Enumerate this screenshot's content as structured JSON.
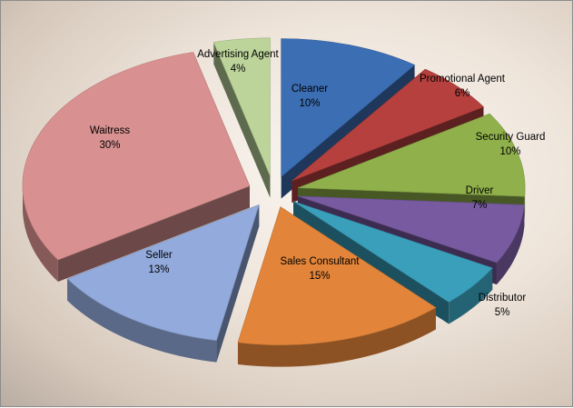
{
  "chart_data": {
    "type": "pie",
    "title": "",
    "exploded": true,
    "style": "3d",
    "categories": [
      "Cleaner",
      "Promotional Agent",
      "Security Guard",
      "Driver",
      "Distributor",
      "Sales Consultant",
      "Seller",
      "Waitress",
      "Advertising Agent"
    ],
    "values": [
      10,
      6,
      10,
      7,
      5,
      15,
      13,
      30,
      4
    ],
    "labels": [
      "10%",
      "6%",
      "10%",
      "7%",
      "5%",
      "15%",
      "13%",
      "30%",
      "4%"
    ],
    "colors": [
      "#3c6eb4",
      "#b5403d",
      "#8fb04a",
      "#775aa0",
      "#3a9fbb",
      "#e2853a",
      "#92aadc",
      "#d89190",
      "#bcd49a"
    ]
  }
}
